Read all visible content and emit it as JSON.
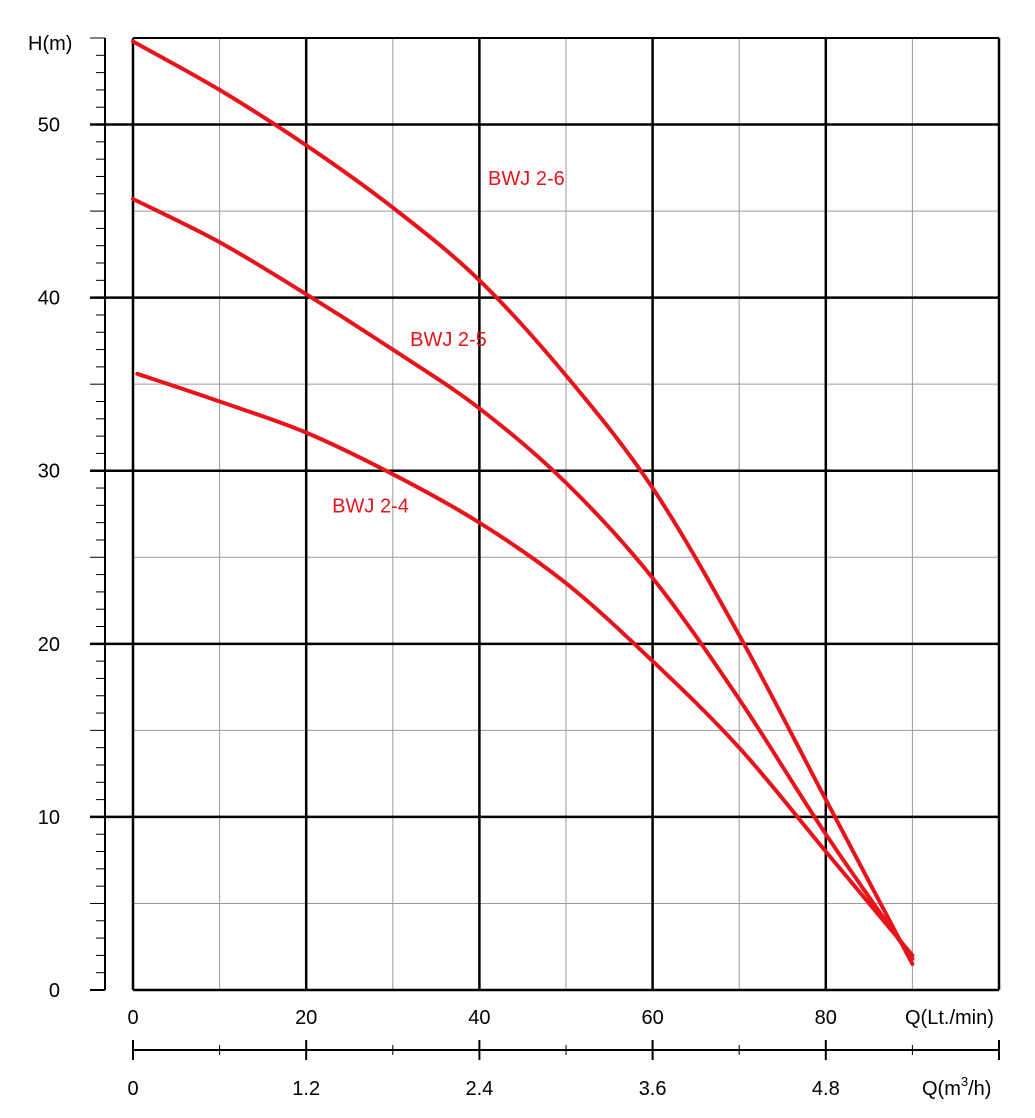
{
  "chart_data": {
    "type": "line",
    "y_axis_label": "H(m)",
    "x_axis_label_primary": "Q(Lt./min)",
    "x_axis_label_secondary_base": "Q(m",
    "x_axis_label_secondary_sup": "3",
    "x_axis_label_secondary_tail": "/h)",
    "ylim": [
      0,
      55
    ],
    "xlim": [
      0,
      100
    ],
    "y_ticks": [
      "0",
      "10",
      "20",
      "30",
      "40",
      "50"
    ],
    "y_tick_values": [
      0,
      10,
      20,
      30,
      40,
      50
    ],
    "x_ticks_primary": [
      "0",
      "20",
      "40",
      "60",
      "80"
    ],
    "x_ticks_primary_values": [
      0,
      20,
      40,
      60,
      80
    ],
    "x_ticks_secondary": [
      "0",
      "1.2",
      "2.4",
      "3.6",
      "4.8"
    ],
    "x_ticks_secondary_values": [
      0,
      20,
      40,
      60,
      80
    ],
    "grid": true,
    "line_color": "#e8141c",
    "series": [
      {
        "name": "BWJ 2-6",
        "label_at": [
          41,
          46.5
        ],
        "points": [
          [
            0,
            54.8
          ],
          [
            10,
            52.0
          ],
          [
            20,
            48.8
          ],
          [
            30,
            45.2
          ],
          [
            40,
            41.0
          ],
          [
            50,
            35.5
          ],
          [
            60,
            29.0
          ],
          [
            70,
            20.5
          ],
          [
            80,
            11.0
          ],
          [
            90,
            1.5
          ]
        ]
      },
      {
        "name": "BWJ 2-5",
        "label_at": [
          32,
          37.2
        ],
        "points": [
          [
            0,
            45.7
          ],
          [
            10,
            43.2
          ],
          [
            20,
            40.2
          ],
          [
            30,
            37.0
          ],
          [
            40,
            33.6
          ],
          [
            50,
            29.3
          ],
          [
            60,
            23.8
          ],
          [
            70,
            16.8
          ],
          [
            80,
            9.0
          ],
          [
            90,
            1.8
          ]
        ]
      },
      {
        "name": "BWJ 2-4",
        "label_at": [
          23,
          27.6
        ],
        "points": [
          [
            0.5,
            35.6
          ],
          [
            10,
            34.0
          ],
          [
            20,
            32.2
          ],
          [
            30,
            29.8
          ],
          [
            40,
            27.0
          ],
          [
            50,
            23.5
          ],
          [
            60,
            19.0
          ],
          [
            70,
            14.0
          ],
          [
            80,
            8.0
          ],
          [
            90,
            2.0
          ]
        ]
      }
    ]
  }
}
